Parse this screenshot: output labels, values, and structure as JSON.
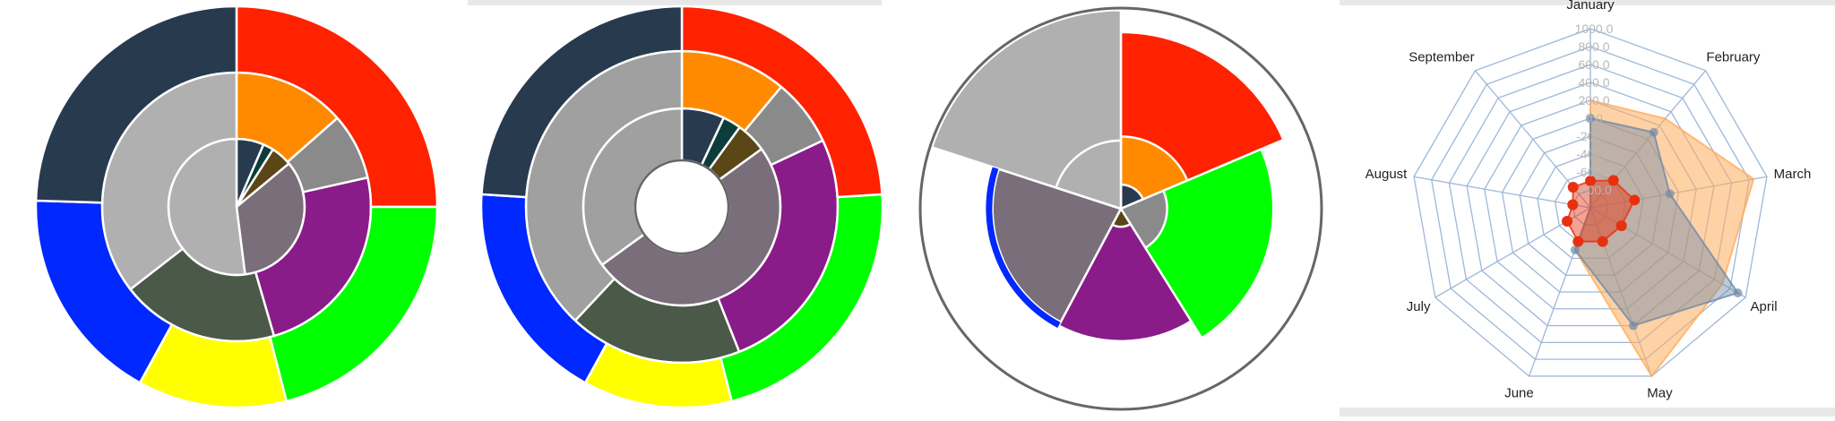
{
  "colors": {
    "red": "#ff2200",
    "orange": "#ff8a00",
    "navy": "#283a4e",
    "teal": "#0c3d3a",
    "gray": "#8a8a8a",
    "olive": "#5a4616",
    "purple": "#891c89",
    "mauve": "#7b6e7b",
    "green": "#00ff00",
    "darkgreen": "#4b5a48",
    "yellow": "#ffff00",
    "blue": "#0028ff",
    "lightgray": "#b0b0b0",
    "midgray": "#a0a0a0",
    "radar_orange": "#ffad5c",
    "radar_blue": "#708aa8",
    "radar_red": "#e83010",
    "web": "#9db8d8"
  },
  "chart_data": [
    {
      "type": "sunburst",
      "rings": [
        {
          "level": "inner",
          "segments": [
            {
              "value": 6.5,
              "color": "navy"
            },
            {
              "value": 2.5,
              "color": "teal"
            },
            {
              "value": 5,
              "color": "olive"
            },
            {
              "value": 34,
              "color": "mauve"
            },
            {
              "value": 52,
              "color": "lightgray"
            }
          ]
        },
        {
          "level": "middle",
          "segments": [
            {
              "value": 13.5,
              "color": "orange"
            },
            {
              "value": 8,
              "color": "gray"
            },
            {
              "value": 24,
              "color": "purple"
            },
            {
              "value": 19,
              "color": "darkgreen"
            },
            {
              "value": 35.5,
              "color": "lightgray"
            }
          ]
        },
        {
          "level": "outer",
          "segments": [
            {
              "value": 25,
              "color": "red"
            },
            {
              "value": 21,
              "color": "green"
            },
            {
              "value": 12,
              "color": "yellow"
            },
            {
              "value": 17.5,
              "color": "blue"
            },
            {
              "value": 24.5,
              "color": "navy"
            }
          ]
        }
      ]
    },
    {
      "type": "sunburst",
      "hole": true,
      "rings": [
        {
          "level": "inner",
          "segments": [
            {
              "value": 7,
              "color": "navy"
            },
            {
              "value": 3,
              "color": "teal"
            },
            {
              "value": 5,
              "color": "olive"
            },
            {
              "value": 50,
              "color": "mauve"
            },
            {
              "value": 35,
              "color": "midgray"
            }
          ]
        },
        {
          "level": "middle",
          "segments": [
            {
              "value": 11,
              "color": "orange"
            },
            {
              "value": 7,
              "color": "gray"
            },
            {
              "value": 26,
              "color": "purple"
            },
            {
              "value": 18,
              "color": "darkgreen"
            },
            {
              "value": 38,
              "color": "midgray"
            }
          ]
        },
        {
          "level": "outer",
          "segments": [
            {
              "value": 24,
              "color": "red"
            },
            {
              "value": 22,
              "color": "green"
            },
            {
              "value": 12,
              "color": "yellow"
            },
            {
              "value": 18,
              "color": "blue"
            },
            {
              "value": 24,
              "color": "navy"
            }
          ]
        }
      ]
    },
    {
      "type": "nightingale",
      "wedges": [
        {
          "from_deg": 0,
          "to_deg": 67,
          "radius": 0.88,
          "color": "red"
        },
        {
          "from_deg": 0,
          "to_deg": 67,
          "radius": 0.36,
          "color": "orange"
        },
        {
          "from_deg": 0,
          "to_deg": 67,
          "radius": 0.12,
          "color": "navy"
        },
        {
          "from_deg": 67,
          "to_deg": 90,
          "radius": 0.12,
          "color": "teal"
        },
        {
          "from_deg": 67,
          "to_deg": 148,
          "radius": 0.76,
          "color": "green"
        },
        {
          "from_deg": 67,
          "to_deg": 148,
          "radius": 0.23,
          "color": "gray"
        },
        {
          "from_deg": 148,
          "to_deg": 208,
          "radius": 0.66,
          "color": "purple"
        },
        {
          "from_deg": 148,
          "to_deg": 208,
          "radius": 0.09,
          "color": "olive"
        },
        {
          "from_deg": 208,
          "to_deg": 288,
          "radius": 0.64,
          "color": "mauve"
        },
        {
          "from_deg": 288,
          "to_deg": 360,
          "radius": 0.99,
          "color": "lightgray"
        },
        {
          "from_deg": 288,
          "to_deg": 360,
          "radius": 0.34,
          "color": "lightgray"
        }
      ],
      "outer_ring": true,
      "blue_arc": {
        "from_deg": 208,
        "to_deg": 288,
        "radius": 0.63
      }
    },
    {
      "type": "radar",
      "categories": [
        "January",
        "February",
        "March",
        "April",
        "May",
        "June",
        "July",
        "August",
        "September"
      ],
      "ylim": [
        -1000,
        1000
      ],
      "tick_labels": [
        "1000.0",
        "800.0",
        "600.0",
        "400.0",
        "200.0",
        "0.0",
        "-200.0",
        "-400.0",
        "-600.0",
        "-800.0"
      ],
      "series": [
        {
          "color": "radar_orange",
          "fill": true,
          "values": [
            200,
            300,
            850,
            700,
            1000,
            -500,
            -1000,
            -1000,
            -1000
          ],
          "markers": false
        },
        {
          "color": "radar_blue",
          "fill": true,
          "values": [
            0,
            100,
            -100,
            900,
            400,
            -500,
            -1000,
            -1000,
            -1000
          ],
          "markers": true
        },
        {
          "color": "radar_red",
          "fill": true,
          "values": [
            -700,
            -600,
            -500,
            -600,
            -600,
            -600,
            -700,
            -800,
            -700
          ],
          "markers": true
        }
      ]
    }
  ]
}
